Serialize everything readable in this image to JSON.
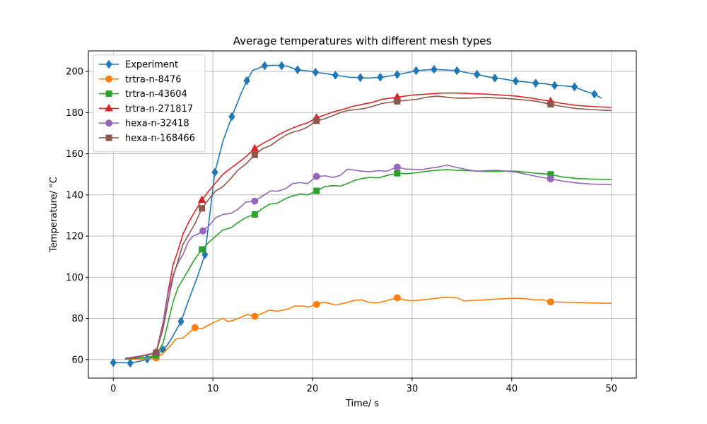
{
  "chart_data": {
    "type": "line",
    "title": "Average temperatures with different mesh types",
    "xlabel": "Time/ s",
    "ylabel": "Temperature/ °C",
    "xlim": [
      -2.5,
      52.5
    ],
    "ylim": [
      51,
      210
    ],
    "xticks": [
      0,
      10,
      20,
      30,
      40,
      50
    ],
    "yticks": [
      60,
      80,
      100,
      120,
      140,
      160,
      180,
      200
    ],
    "grid": true,
    "legend_position": "top-left",
    "series": [
      {
        "name": "Experiment",
        "color": "#1f77b4",
        "marker": "diamond",
        "x": [
          0,
          1,
          1.7,
          2.7,
          3.4,
          4.2,
          5,
          5.5,
          6,
          6.8,
          7.5,
          8.5,
          9.2,
          10.2,
          11,
          11.9,
          12.8,
          13.4,
          14,
          15.2,
          16.2,
          16.9,
          17.5,
          18.5,
          19.5,
          20.3,
          21.3,
          22.3,
          23.7,
          24.8,
          25.6,
          26.8,
          27.4,
          28.5,
          29.4,
          30.4,
          31.3,
          32.2,
          33.4,
          34.5,
          35.5,
          36.5,
          37.3,
          38.3,
          39.2,
          40.4,
          41.3,
          42.4,
          43.4,
          44.3,
          45.3,
          46.3,
          47.3,
          48.3,
          49
        ],
        "y": [
          58.5,
          58.5,
          58.3,
          59.2,
          60.3,
          61.8,
          64.8,
          67.5,
          71.5,
          78.5,
          88,
          101,
          111,
          151,
          166,
          178,
          189,
          195.5,
          200.5,
          202.8,
          203,
          202.8,
          202.5,
          200.8,
          200.3,
          199.6,
          199,
          198.2,
          197.2,
          197,
          196.8,
          197.2,
          197.5,
          198.5,
          199.3,
          200.4,
          200.7,
          201,
          200.7,
          200.4,
          199.4,
          198.6,
          197.7,
          196.8,
          196.3,
          195.3,
          195,
          194.3,
          194,
          193.2,
          193,
          192.5,
          190.5,
          189,
          187
        ],
        "marker_indices": [
          0,
          2,
          4,
          6,
          9,
          12,
          13,
          15,
          17,
          19,
          21,
          23,
          25,
          27,
          29,
          31,
          33,
          35,
          37,
          39,
          41,
          43,
          45,
          47,
          49,
          51,
          53
        ]
      },
      {
        "name": "trtra-n-8476",
        "color": "#ff7f0e",
        "marker": "circle",
        "x": [
          1.2,
          2.5,
          3.5,
          4.3,
          5,
          5.7,
          6.3,
          7,
          7.5,
          8.2,
          8.9,
          9.6,
          10.3,
          11,
          11.5,
          12,
          12.8,
          13.5,
          14.2,
          15,
          15.6,
          16.5,
          17.5,
          18.2,
          19,
          19.6,
          20.4,
          21,
          21.5,
          22.3,
          23.3,
          24.2,
          25,
          25.5,
          26.3,
          27,
          27.7,
          28.5,
          29.2,
          30,
          31,
          32,
          33.3,
          34.5,
          35.2,
          36.5,
          37.5,
          38.5,
          39.5,
          40.3,
          41.3,
          42.3,
          43.2,
          43.9,
          45,
          46.5,
          48,
          50
        ],
        "y": [
          60.3,
          60.3,
          60.4,
          60.8,
          63,
          66.5,
          70,
          70.5,
          72.5,
          75.5,
          75,
          76.8,
          78.5,
          80,
          78.5,
          79,
          80.5,
          82,
          81,
          82.5,
          84,
          83.5,
          84.5,
          86,
          86,
          85.5,
          86.8,
          87.8,
          87.5,
          86.5,
          87.5,
          88.8,
          89,
          88,
          87.5,
          88,
          89,
          90,
          89,
          88.5,
          89,
          89.5,
          90.3,
          90,
          88.5,
          88.8,
          89.1,
          89.4,
          89.6,
          89.8,
          89.6,
          89,
          89,
          88,
          87.9,
          87.7,
          87.5,
          87.3
        ],
        "marker_indices": [
          3,
          9,
          18,
          26,
          37,
          53
        ]
      },
      {
        "name": "trtra-n-43604",
        "color": "#2ca02c",
        "marker": "square",
        "x": [
          1.2,
          2.5,
          3.5,
          4.3,
          5,
          5.5,
          6,
          6.5,
          7,
          7.6,
          8.2,
          8.9,
          9.6,
          10.3,
          11,
          11.8,
          12.5,
          13.3,
          14.2,
          15,
          15.7,
          16.5,
          17.2,
          18,
          18.8,
          19.5,
          20.4,
          21.2,
          22,
          22.8,
          23.5,
          24.2,
          25,
          25.8,
          26.6,
          27.5,
          28.5,
          29.5,
          30.5,
          31.5,
          32.5,
          33.5,
          34.5,
          35.5,
          36.5,
          37.5,
          38.5,
          39.5,
          40.5,
          41.5,
          42.5,
          43.9,
          45,
          46.5,
          48,
          50
        ],
        "y": [
          60.3,
          60.6,
          61.2,
          62,
          68,
          78,
          88,
          95,
          99,
          104,
          109,
          113.5,
          117,
          120,
          123,
          124,
          126.5,
          129,
          130.5,
          133.5,
          135.5,
          136,
          138,
          139.5,
          140.5,
          140,
          142,
          144,
          144.5,
          144.3,
          145.5,
          147,
          148,
          148.5,
          148.3,
          149.5,
          150.5,
          150.3,
          150.8,
          151.5,
          152,
          152.3,
          152,
          151.8,
          151.6,
          151.4,
          151.5,
          151.6,
          151.5,
          151,
          150.5,
          150,
          148.8,
          148,
          147.7,
          147.5
        ],
        "marker_indices": [
          3,
          11,
          18,
          26,
          36,
          51
        ]
      },
      {
        "name": "trtra-n-271817",
        "color": "#d62728",
        "marker": "triangle",
        "x": [
          1.2,
          2.5,
          3.5,
          4.3,
          5,
          5.5,
          6,
          6.5,
          7,
          7.6,
          8.2,
          8.9,
          9.6,
          10.3,
          11,
          11.8,
          12.5,
          13.3,
          14.2,
          15,
          15.8,
          16.5,
          17.3,
          18,
          18.8,
          19.5,
          20.4,
          21.3,
          22.2,
          23,
          24,
          25,
          26,
          27,
          28.5,
          30,
          31.5,
          33,
          34.5,
          36,
          37.5,
          39,
          40.5,
          42,
          43.9,
          45,
          46.5,
          48,
          50
        ],
        "y": [
          60.6,
          61.5,
          62.5,
          63.5,
          78,
          93,
          106,
          113,
          121,
          127,
          132,
          137.5,
          142,
          146,
          150,
          153,
          155.5,
          158.5,
          162.5,
          165,
          167,
          169,
          171,
          172.5,
          174,
          175,
          177.5,
          179,
          180.5,
          181.5,
          183,
          184,
          185,
          186.5,
          187.5,
          188.5,
          189,
          189.5,
          189.5,
          189.2,
          189,
          188.5,
          188,
          187,
          185.5,
          184.5,
          183.5,
          183,
          182.5
        ],
        "marker_indices": [
          3,
          11,
          18,
          26,
          34,
          44
        ]
      },
      {
        "name": "hexa-n-32418",
        "color": "#9467bd",
        "marker": "circle",
        "x": [
          1.2,
          2.5,
          3.5,
          4.3,
          5,
          5.5,
          6,
          6.5,
          7,
          7.5,
          8,
          8.5,
          9,
          9.6,
          10.3,
          11,
          11.8,
          12.5,
          13.3,
          14.2,
          15,
          15.8,
          16.5,
          17.3,
          18,
          18.8,
          19.5,
          20.4,
          21.3,
          22,
          22.8,
          23.5,
          24.3,
          25,
          25.8,
          26.6,
          27.4,
          28.5,
          29.3,
          30.2,
          31,
          31.8,
          32.6,
          33.5,
          34.5,
          35.5,
          36.5,
          37.5,
          38.5,
          39.5,
          40.5,
          41.5,
          42.5,
          43.9,
          45,
          46.5,
          48,
          50
        ],
        "y": [
          60.6,
          61.5,
          62.4,
          63.5,
          77,
          92,
          101,
          107,
          111,
          117,
          120,
          121,
          122.5,
          125,
          129,
          130.5,
          131,
          133,
          136.5,
          137,
          139.5,
          142,
          141.8,
          143,
          145.5,
          146,
          145.5,
          149,
          149.3,
          148.5,
          149.5,
          152.5,
          152,
          151.5,
          151.3,
          151.8,
          151.5,
          153.5,
          152.6,
          152.4,
          152.3,
          153,
          153.5,
          154.5,
          153.3,
          152.3,
          151.5,
          151.8,
          152,
          151.5,
          151,
          150,
          149,
          147.8,
          146.8,
          145.8,
          145.3,
          145
        ],
        "marker_indices": [
          3,
          12,
          19,
          27,
          37,
          53
        ]
      },
      {
        "name": "hexa-n-168466",
        "color": "#8c564b",
        "marker": "square",
        "x": [
          1.2,
          2.5,
          3.5,
          4.3,
          5,
          5.5,
          6,
          6.5,
          7,
          7.6,
          8.2,
          8.9,
          9.6,
          10.3,
          11,
          11.8,
          12.5,
          13.3,
          14.2,
          15,
          15.8,
          16.5,
          17.3,
          18,
          18.8,
          19.5,
          20.4,
          21.2,
          22,
          22.8,
          23.5,
          24.3,
          25.2,
          26,
          27,
          28.5,
          29.5,
          30.5,
          31.5,
          32.5,
          33.5,
          34.5,
          35.5,
          36.5,
          37.5,
          38.5,
          39.5,
          40.5,
          41.5,
          42.5,
          43.9,
          45,
          46.5,
          48,
          50
        ],
        "y": [
          60.3,
          61.2,
          62.2,
          63.3,
          75,
          88,
          100,
          108,
          116,
          121,
          126,
          133.5,
          138,
          142,
          144,
          148,
          152,
          155,
          159.5,
          162.5,
          164,
          166.5,
          169,
          170.5,
          171.5,
          173,
          176,
          177,
          178.5,
          180,
          181,
          181.5,
          182,
          183,
          184.5,
          185.5,
          186,
          186.5,
          187.5,
          188,
          187.5,
          187,
          187,
          187.2,
          187.4,
          187.1,
          186.9,
          186.5,
          186,
          185.5,
          184,
          183,
          182,
          181.5,
          181
        ],
        "marker_indices": [
          3,
          11,
          18,
          26,
          35,
          50
        ]
      }
    ]
  }
}
